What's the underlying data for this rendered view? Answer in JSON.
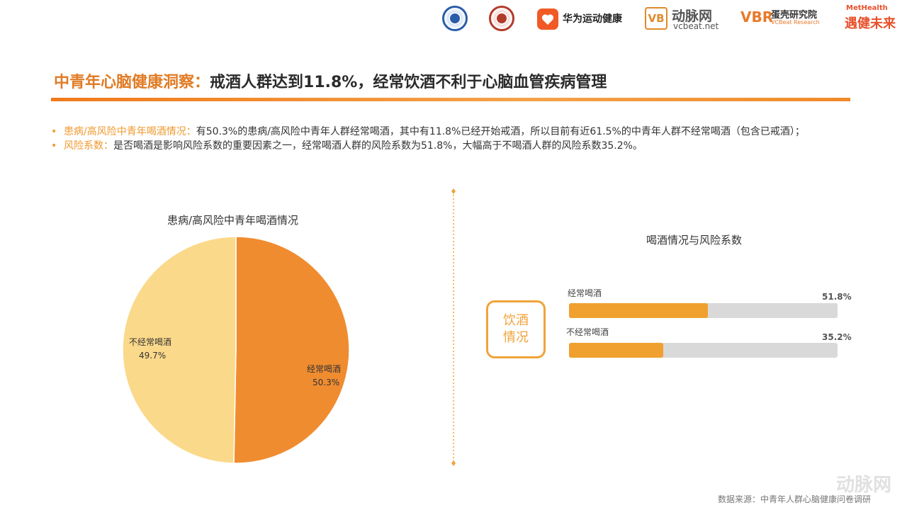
{
  "header": {
    "logos": [
      {
        "name": "university-seal-icon",
        "color": "#2a5da8"
      },
      {
        "name": "association-seal-icon",
        "color": "#b23a2a"
      }
    ],
    "huawei_health": "华为运动健康",
    "vcbeat_mark": "VB",
    "vcbeat_cn": "动脉网",
    "vcbeat_url": "vcbeat.net",
    "vbr_mark": "VBR",
    "vbr_cn": "蛋壳研究院",
    "vbr_en": "VCBeat Research",
    "methealth_en": "MetHealth",
    "methealth_cn": "遇健未来"
  },
  "title": {
    "highlight": "中青年心脑健康洞察：",
    "rest": "戒酒人群达到11.8%，经常饮酒不利于心脑血管疾病管理"
  },
  "bullets": [
    {
      "label": "患病/高风险中青年喝酒情况：",
      "text": "有50.3%的患病/高风险中青年人群经常喝酒，其中有11.8%已经开始戒酒，所以目前有近61.5%的中青年人群不经常喝酒（包含已戒酒）；"
    },
    {
      "label": "风险系数：",
      "text": "是否喝酒是影响风险系数的重要因素之一，经常喝酒人群的风险系数为51.8%，大幅高于不喝酒人群的风险系数35.2%。"
    }
  ],
  "badge": {
    "line1": "饮酒",
    "line2": "情况"
  },
  "source": "数据来源：中青年人群心脑健康问卷调研",
  "watermark": "动脉网",
  "colors": {
    "accent": "#e07b24",
    "pie_main": "#f08c30",
    "pie_light": "#fbd98a",
    "bar": "#f0a02e",
    "track": "#d9d9d9"
  },
  "chart_data": [
    {
      "type": "pie",
      "title": "患病/高风险中青年喝酒情况",
      "slices": [
        {
          "label": "经常喝酒",
          "value": 50.3,
          "display": "50.3%",
          "color": "#f08c30"
        },
        {
          "label": "不经常喝酒",
          "value": 49.7,
          "display": "49.7%",
          "color": "#fbd98a"
        }
      ]
    },
    {
      "type": "bar",
      "orientation": "horizontal",
      "title": "喝酒情况与风险系数",
      "categories": [
        "经常喝酒",
        "不经常喝酒"
      ],
      "values": [
        51.8,
        35.2
      ],
      "displays": [
        "51.8%",
        "35.2%"
      ],
      "xlim": [
        0,
        100
      ]
    }
  ]
}
